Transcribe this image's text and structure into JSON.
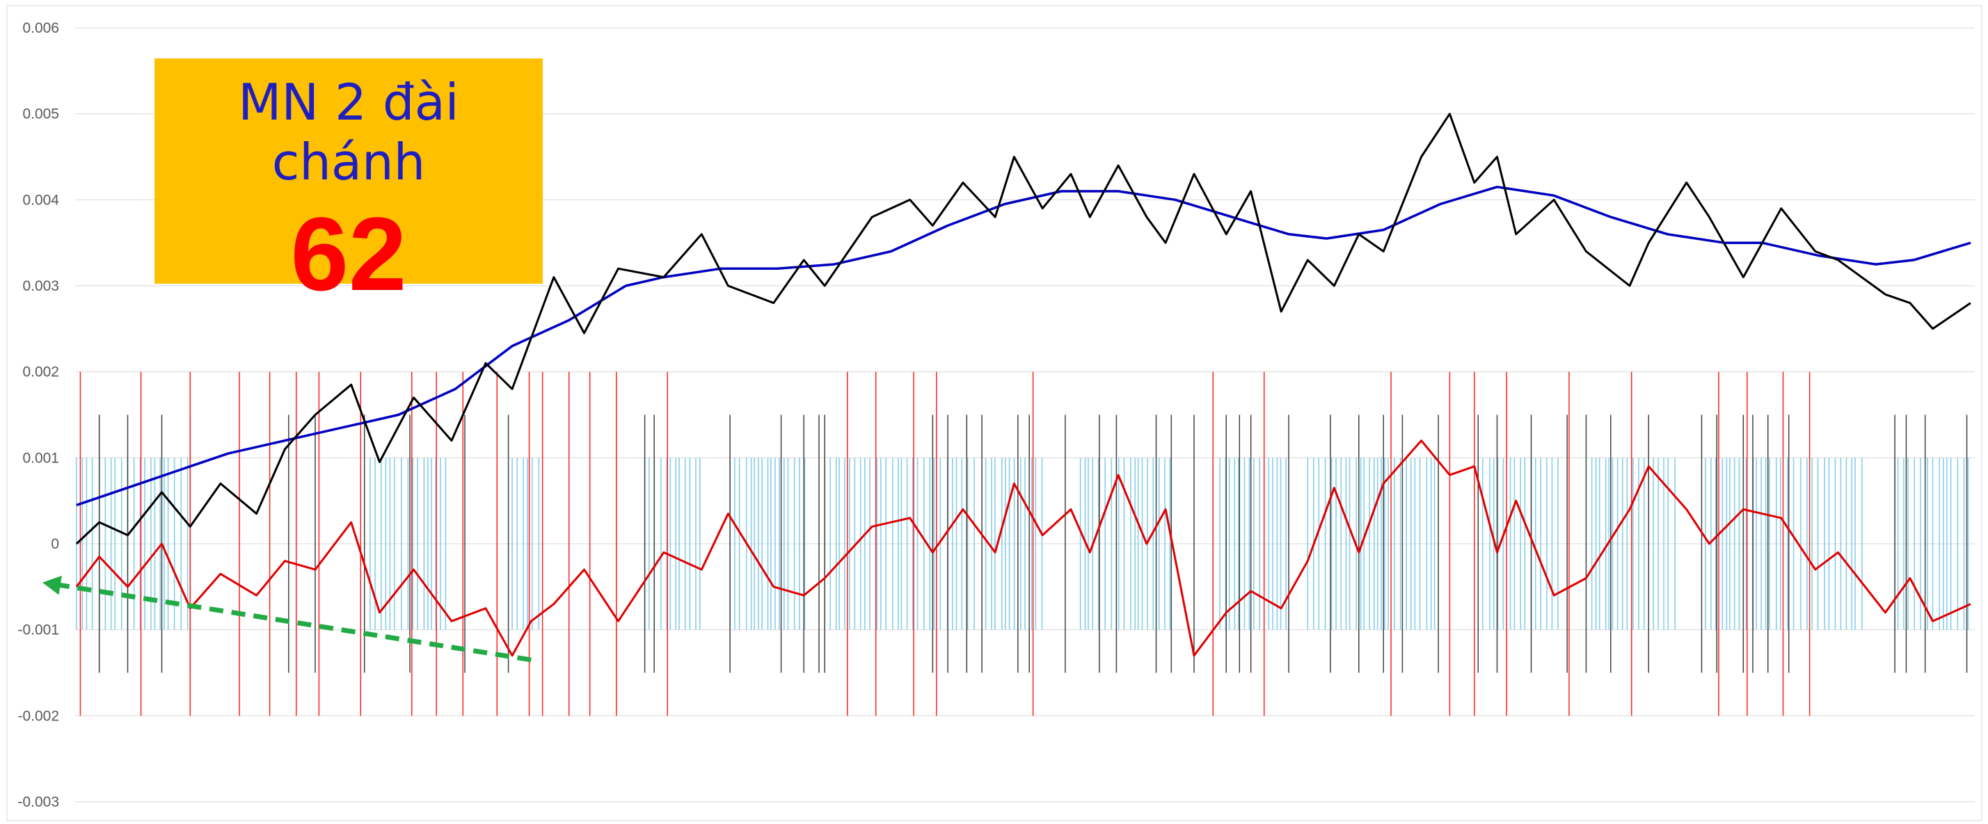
{
  "badge": {
    "title": "MN 2 đài chánh",
    "number": "62"
  },
  "colors": {
    "black_series": "#000000",
    "blue_series": "#0000c0",
    "red_series": "#e00000",
    "cyan_bars": "#87ceeb",
    "red_markers": "#ff2020",
    "gray_markers": "#404040",
    "trend_arrow": "#22aa44",
    "badge_bg": "#ffc000",
    "grid": "#d9d9d9"
  },
  "chart_data": {
    "type": "line",
    "title": "",
    "xlabel": "",
    "ylabel": "",
    "ylim": [
      -0.003,
      0.006
    ],
    "xlim": [
      0,
      1000
    ],
    "y_ticks": [
      "0.006",
      "0.005",
      "0.004",
      "0.003",
      "0.002",
      "0.001",
      "0",
      "-0.001",
      "-0.002",
      "-0.003"
    ],
    "y_tick_values": [
      0.006,
      0.005,
      0.004,
      0.003,
      0.002,
      0.001,
      0,
      -0.001,
      -0.002,
      -0.003
    ],
    "grid": true,
    "legend": "none",
    "series": [
      {
        "key": "black",
        "x": [
          0,
          12,
          27,
          45,
          60,
          76,
          95,
          110,
          126,
          145,
          160,
          178,
          198,
          216,
          230,
          252,
          268,
          286,
          310,
          330,
          344,
          368,
          384,
          395,
          420,
          440,
          452,
          468,
          485,
          495,
          510,
          525,
          535,
          550,
          565,
          575,
          590,
          607,
          620,
          636,
          650,
          664,
          677,
          690,
          710,
          725,
          738,
          750,
          760,
          780,
          797,
          820,
          830,
          850,
          862,
          880,
          900,
          918,
          930,
          955,
          968,
          980,
          1000
        ],
        "y": [
          0.0,
          0.00025,
          0.0001,
          0.0006,
          0.0002,
          0.0007,
          0.00035,
          0.0011,
          0.0015,
          0.00185,
          0.00095,
          0.0017,
          0.0012,
          0.0021,
          0.0018,
          0.0031,
          0.00245,
          0.0032,
          0.0031,
          0.0036,
          0.003,
          0.0028,
          0.0033,
          0.003,
          0.0038,
          0.004,
          0.0037,
          0.0042,
          0.0038,
          0.0045,
          0.0039,
          0.0043,
          0.0038,
          0.0044,
          0.0038,
          0.0035,
          0.0043,
          0.0036,
          0.0041,
          0.0027,
          0.0033,
          0.003,
          0.0036,
          0.0034,
          0.0045,
          0.005,
          0.0042,
          0.0045,
          0.0036,
          0.004,
          0.0034,
          0.003,
          0.0035,
          0.0042,
          0.0038,
          0.0031,
          0.0039,
          0.0034,
          0.0033,
          0.0029,
          0.0028,
          0.0025,
          0.0028
        ]
      },
      {
        "key": "blue",
        "x": [
          0,
          40,
          60,
          80,
          100,
          130,
          150,
          170,
          200,
          230,
          260,
          290,
          310,
          340,
          370,
          400,
          430,
          460,
          490,
          520,
          550,
          580,
          610,
          640,
          660,
          690,
          720,
          750,
          780,
          810,
          840,
          870,
          890,
          920,
          950,
          970,
          1000
        ],
        "y": [
          0.00045,
          0.00075,
          0.0009,
          0.00105,
          0.00115,
          0.0013,
          0.0014,
          0.0015,
          0.0018,
          0.0023,
          0.0026,
          0.003,
          0.0031,
          0.0032,
          0.0032,
          0.00325,
          0.0034,
          0.0037,
          0.00395,
          0.0041,
          0.0041,
          0.004,
          0.0038,
          0.0036,
          0.00355,
          0.00365,
          0.00395,
          0.00415,
          0.00405,
          0.0038,
          0.0036,
          0.0035,
          0.0035,
          0.00335,
          0.00325,
          0.0033,
          0.0035
        ]
      },
      {
        "key": "red",
        "x": [
          0,
          12,
          27,
          45,
          60,
          76,
          95,
          110,
          126,
          145,
          160,
          178,
          198,
          216,
          230,
          240,
          252,
          268,
          286,
          310,
          330,
          344,
          368,
          384,
          395,
          420,
          440,
          452,
          468,
          485,
          495,
          510,
          525,
          535,
          550,
          565,
          575,
          590,
          607,
          620,
          636,
          650,
          664,
          677,
          690,
          710,
          725,
          738,
          750,
          760,
          780,
          797,
          820,
          830,
          850,
          862,
          880,
          900,
          918,
          930,
          955,
          968,
          980,
          1000
        ],
        "y": [
          -0.0005,
          -0.00015,
          -0.0005,
          0.0,
          -0.00075,
          -0.00035,
          -0.0006,
          -0.0002,
          -0.0003,
          0.00025,
          -0.0008,
          -0.0003,
          -0.0009,
          -0.00075,
          -0.0013,
          -0.0009,
          -0.0007,
          -0.0003,
          -0.0009,
          -0.0001,
          -0.0003,
          0.00035,
          -0.0005,
          -0.0006,
          -0.0004,
          0.0002,
          0.0003,
          -0.0001,
          0.0004,
          -0.0001,
          0.0007,
          0.0001,
          0.0004,
          -0.0001,
          0.0008,
          0.0,
          0.0004,
          -0.0013,
          -0.0008,
          -0.00055,
          -0.00075,
          -0.0002,
          0.00065,
          -0.0001,
          0.0007,
          0.0012,
          0.0008,
          0.0009,
          -0.0001,
          0.0005,
          -0.0006,
          -0.0004,
          0.0004,
          0.0009,
          0.0004,
          0.0,
          0.0004,
          0.0003,
          -0.0003,
          -0.0001,
          -0.0008,
          -0.0004,
          -0.0009,
          -0.0007
        ]
      },
      {
        "key": "trend",
        "x": [
          240,
          -18
        ],
        "y": [
          -0.00135,
          -0.00045
        ]
      }
    ]
  }
}
